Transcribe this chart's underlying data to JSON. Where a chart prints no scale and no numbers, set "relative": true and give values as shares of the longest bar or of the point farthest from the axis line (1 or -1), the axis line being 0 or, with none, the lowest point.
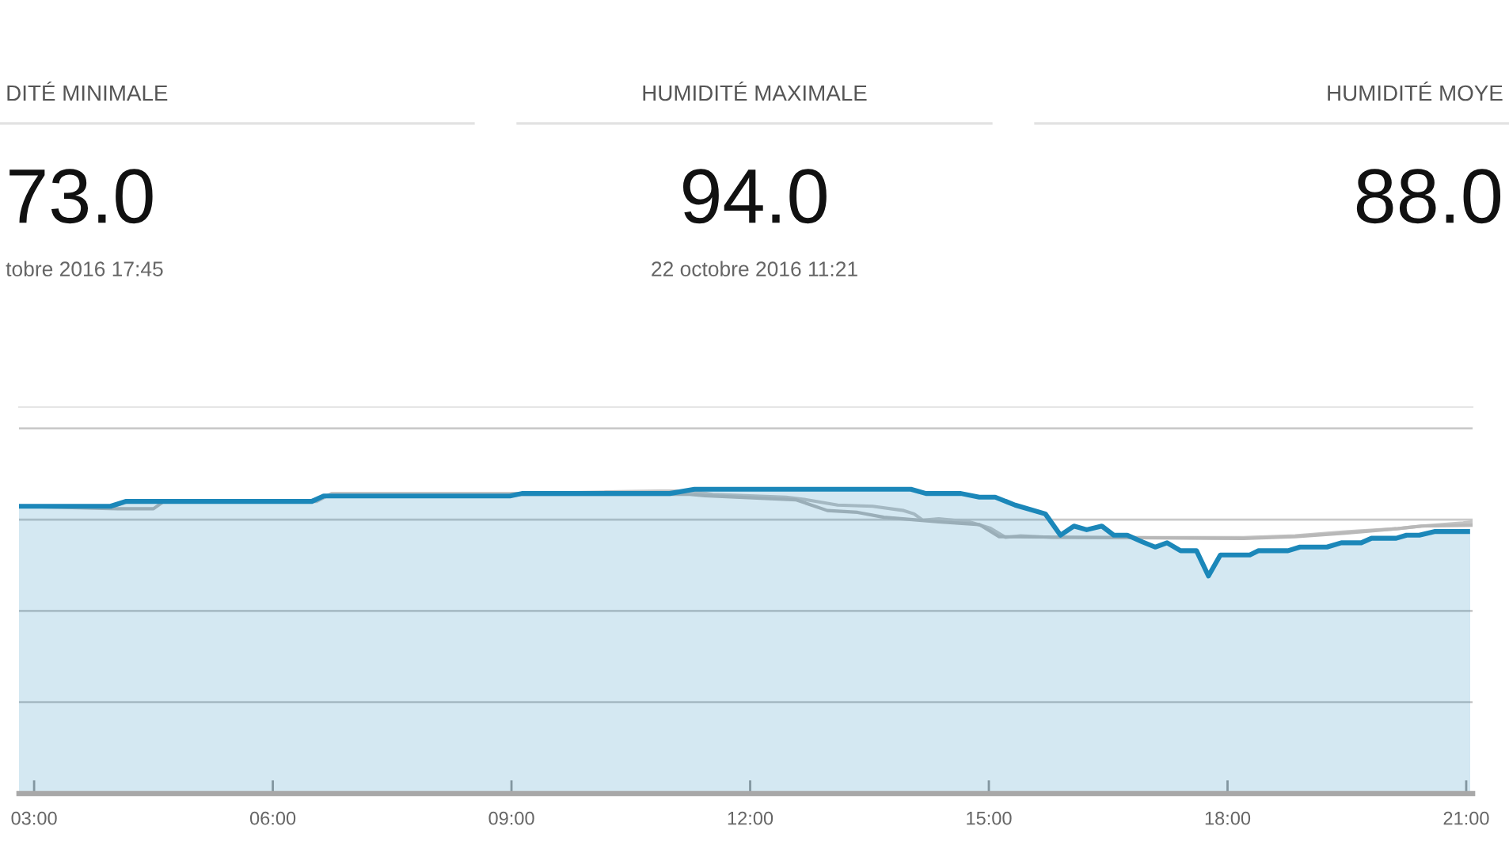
{
  "chart_data": [
    {
      "type": "other",
      "title": "DITÉ MINIMALE",
      "annotations": [
        "73.0",
        "tobre 2016 17:45"
      ]
    },
    {
      "type": "other",
      "title": "HUMIDITÉ MAXIMALE",
      "annotations": [
        "94.0",
        "22 octobre 2016 11:21"
      ]
    },
    {
      "type": "other",
      "title": "HUMIDITÉ MOYE",
      "annotations": [
        "88.0"
      ]
    },
    {
      "type": "area",
      "relative": true,
      "grid": "y",
      "tick_labels": "x",
      "xlim": [
        2.81,
        21.08
      ],
      "xticks": [
        {
          "value": 3,
          "label": "03:00"
        },
        {
          "value": 6,
          "label": "06:00"
        },
        {
          "value": 9,
          "label": "09:00"
        },
        {
          "value": 12,
          "label": "12:00"
        },
        {
          "value": 15,
          "label": "15:00"
        },
        {
          "value": 18,
          "label": "18:00"
        },
        {
          "value": 21,
          "label": "21:00"
        }
      ],
      "series": [
        {
          "type": "line",
          "color": "#c4c4c4",
          "x": [
            2.81,
            4.0,
            4.19,
            6.55,
            6.74,
            9.13,
            10.19,
            10.86,
            11.24,
            11.53,
            12.45,
            12.72,
            13.1,
            13.54,
            13.93,
            14.06,
            14.17,
            14.37,
            14.75,
            15.02,
            15.21,
            15.4,
            15.79,
            18.2,
            18.85,
            19.48,
            20.12,
            20.44,
            20.96,
            21.08
          ],
          "values": [
            0.944,
            0.944,
            0.96,
            0.96,
            0.986,
            0.986,
            0.991,
            0.994,
            0.994,
            0.983,
            0.974,
            0.965,
            0.948,
            0.944,
            0.93,
            0.919,
            0.898,
            0.903,
            0.893,
            0.872,
            0.842,
            0.847,
            0.842,
            0.841,
            0.847,
            0.86,
            0.87,
            0.879,
            0.889,
            0.893
          ]
        },
        {
          "type": "line",
          "color": "#b8b8b8",
          "x": [
            2.81,
            4.05,
            4.5,
            4.63,
            6.45,
            6.64,
            8.94,
            9.13,
            11.24,
            11.43,
            12.58,
            12.97,
            13.35,
            13.68,
            14.37,
            14.88,
            15.13,
            18.2,
            18.85,
            19.48,
            20.12,
            20.44,
            21.08
          ],
          "values": [
            0.944,
            0.936,
            0.936,
            0.96,
            0.96,
            0.976,
            0.976,
            0.983,
            0.983,
            0.979,
            0.965,
            0.93,
            0.924,
            0.908,
            0.893,
            0.884,
            0.844,
            0.838,
            0.844,
            0.856,
            0.87,
            0.879,
            0.882
          ]
        },
        {
          "type": "area",
          "color": "#1b87b9",
          "x": [
            2.81,
            3.96,
            4.15,
            6.49,
            6.64,
            8.98,
            9.13,
            10.99,
            11.3,
            14.02,
            14.21,
            14.65,
            14.88,
            15.08,
            15.33,
            15.71,
            15.9,
            16.07,
            16.23,
            16.42,
            16.57,
            16.74,
            16.93,
            17.09,
            17.24,
            17.41,
            17.61,
            17.76,
            17.91,
            18.28,
            18.39,
            18.76,
            18.91,
            19.25,
            19.43,
            19.68,
            19.81,
            20.12,
            20.25,
            20.41,
            20.6,
            21.08
          ],
          "values": [
            0.944,
            0.944,
            0.96,
            0.96,
            0.978,
            0.978,
            0.986,
            0.986,
            1.0,
            1.0,
            0.986,
            0.986,
            0.974,
            0.974,
            0.948,
            0.919,
            0.849,
            0.879,
            0.867,
            0.879,
            0.849,
            0.849,
            0.827,
            0.81,
            0.824,
            0.798,
            0.798,
            0.715,
            0.784,
            0.784,
            0.798,
            0.798,
            0.81,
            0.81,
            0.824,
            0.824,
            0.839,
            0.839,
            0.849,
            0.849,
            0.861,
            0.861
          ]
        }
      ]
    }
  ]
}
